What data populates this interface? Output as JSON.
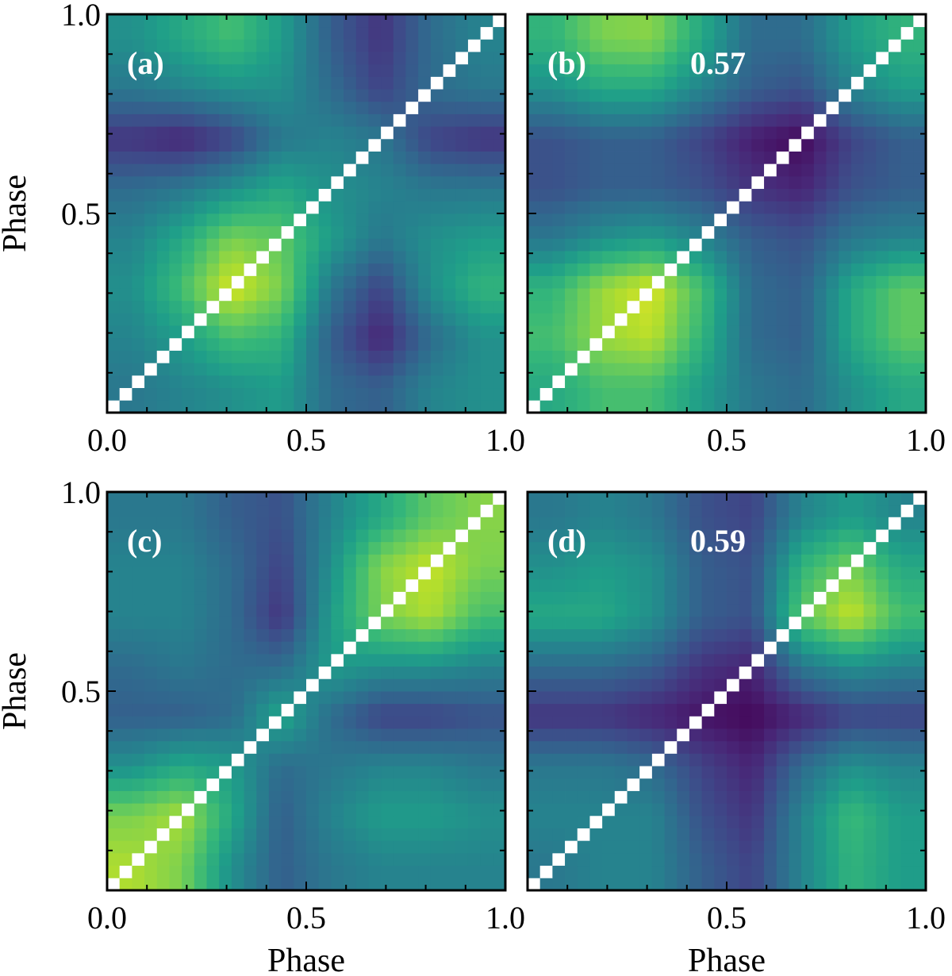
{
  "chart_data": {
    "type": "heatmap",
    "grid_resolution": 32,
    "colormap": "viridis",
    "diagonal_color": "#ffffff",
    "xlim": [
      0,
      1
    ],
    "ylim": [
      0,
      1
    ],
    "x_ticks": [
      "0.0",
      "0.5",
      "1.0"
    ],
    "y_ticks": [
      "0.5",
      "1.0"
    ],
    "xlabel": "Phase",
    "ylabel": "Phase",
    "panels": [
      {
        "label": "(a)",
        "annotation": "",
        "coarse_values_bottom_to_top": [
          [
            0.4,
            0.45,
            0.5,
            0.55,
            0.35,
            0.3,
            0.45,
            0.5
          ],
          [
            0.45,
            0.55,
            0.7,
            0.65,
            0.3,
            0.1,
            0.35,
            0.5
          ],
          [
            0.5,
            0.7,
            0.95,
            0.8,
            0.4,
            0.2,
            0.5,
            0.65
          ],
          [
            0.45,
            0.6,
            0.8,
            0.75,
            0.55,
            0.4,
            0.5,
            0.55
          ],
          [
            0.35,
            0.4,
            0.5,
            0.6,
            0.5,
            0.45,
            0.4,
            0.4
          ],
          [
            0.15,
            0.1,
            0.2,
            0.4,
            0.45,
            0.4,
            0.2,
            0.15
          ],
          [
            0.4,
            0.45,
            0.5,
            0.5,
            0.35,
            0.2,
            0.35,
            0.4
          ],
          [
            0.5,
            0.6,
            0.7,
            0.55,
            0.3,
            0.15,
            0.35,
            0.45
          ]
        ]
      },
      {
        "label": "(b)",
        "annotation": "0.57",
        "coarse_values_bottom_to_top": [
          [
            0.6,
            0.7,
            0.7,
            0.55,
            0.4,
            0.35,
            0.5,
            0.6
          ],
          [
            0.7,
            0.85,
            0.9,
            0.65,
            0.35,
            0.3,
            0.6,
            0.75
          ],
          [
            0.65,
            0.85,
            0.95,
            0.7,
            0.35,
            0.3,
            0.6,
            0.75
          ],
          [
            0.4,
            0.5,
            0.55,
            0.45,
            0.3,
            0.25,
            0.4,
            0.45
          ],
          [
            0.25,
            0.3,
            0.3,
            0.25,
            0.15,
            0.1,
            0.25,
            0.3
          ],
          [
            0.25,
            0.3,
            0.3,
            0.2,
            0.08,
            0.02,
            0.2,
            0.3
          ],
          [
            0.5,
            0.6,
            0.6,
            0.45,
            0.3,
            0.25,
            0.45,
            0.55
          ],
          [
            0.65,
            0.8,
            0.82,
            0.6,
            0.35,
            0.35,
            0.55,
            0.65
          ]
        ]
      },
      {
        "label": "(c)",
        "annotation": "",
        "coarse_values_bottom_to_top": [
          [
            0.88,
            0.8,
            0.5,
            0.3,
            0.4,
            0.45,
            0.45,
            0.45
          ],
          [
            0.8,
            0.88,
            0.6,
            0.3,
            0.45,
            0.55,
            0.55,
            0.5
          ],
          [
            0.5,
            0.6,
            0.55,
            0.35,
            0.4,
            0.45,
            0.45,
            0.4
          ],
          [
            0.3,
            0.3,
            0.35,
            0.6,
            0.35,
            0.2,
            0.2,
            0.25
          ],
          [
            0.35,
            0.4,
            0.35,
            0.35,
            0.55,
            0.5,
            0.5,
            0.45
          ],
          [
            0.45,
            0.45,
            0.35,
            0.15,
            0.55,
            0.8,
            0.88,
            0.7
          ],
          [
            0.45,
            0.45,
            0.35,
            0.2,
            0.5,
            0.82,
            0.92,
            0.8
          ],
          [
            0.4,
            0.4,
            0.3,
            0.25,
            0.45,
            0.6,
            0.75,
            0.82
          ]
        ]
      },
      {
        "label": "(d)",
        "annotation": "0.59",
        "coarse_values_bottom_to_top": [
          [
            0.4,
            0.45,
            0.45,
            0.3,
            0.2,
            0.45,
            0.65,
            0.55
          ],
          [
            0.45,
            0.45,
            0.45,
            0.25,
            0.15,
            0.45,
            0.68,
            0.55
          ],
          [
            0.4,
            0.4,
            0.35,
            0.2,
            0.1,
            0.35,
            0.5,
            0.45
          ],
          [
            0.15,
            0.15,
            0.1,
            0.05,
            0.02,
            0.1,
            0.2,
            0.2
          ],
          [
            0.35,
            0.35,
            0.3,
            0.15,
            0.1,
            0.4,
            0.5,
            0.45
          ],
          [
            0.6,
            0.6,
            0.5,
            0.3,
            0.25,
            0.75,
            0.92,
            0.7
          ],
          [
            0.5,
            0.55,
            0.5,
            0.3,
            0.25,
            0.65,
            0.8,
            0.6
          ],
          [
            0.4,
            0.45,
            0.4,
            0.25,
            0.2,
            0.45,
            0.55,
            0.45
          ]
        ]
      }
    ]
  }
}
